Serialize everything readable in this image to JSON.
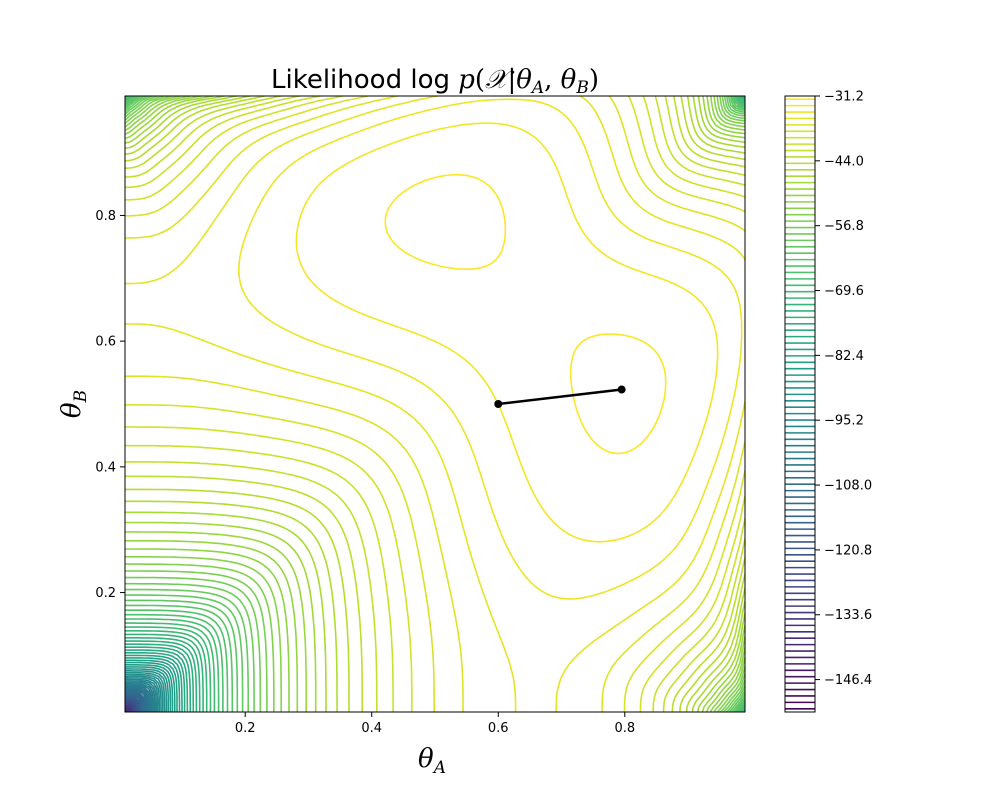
{
  "chart_data": {
    "type": "contour",
    "title": "Likelihood log p(𝒳|θ_A, θ_B)",
    "title_parts": {
      "prefix": "Likelihood log ",
      "p": "p",
      "open": "(",
      "X": "𝒳",
      "bar": "|",
      "theta": "θ",
      "A": "A",
      "comma": ", ",
      "B": "B",
      "close": ")"
    },
    "xlabel": {
      "symbol": "θ",
      "sub": "A"
    },
    "ylabel": {
      "symbol": "θ",
      "sub": "B"
    },
    "xlim": [
      0.01,
      0.99
    ],
    "ylim": [
      0.01,
      0.99
    ],
    "x_ticks": [
      0.2,
      0.4,
      0.6,
      0.8
    ],
    "y_ticks": [
      0.2,
      0.4,
      0.6,
      0.8
    ],
    "x_tick_labels": [
      "0.2",
      "0.4",
      "0.6",
      "0.8"
    ],
    "y_tick_labels": [
      "0.2",
      "0.4",
      "0.6",
      "0.8"
    ],
    "colormap": "viridis",
    "colorbar": {
      "min": -152.8,
      "max": -31.2,
      "ticks": [
        -31.2,
        -44.0,
        -56.8,
        -69.6,
        -82.4,
        -95.2,
        -108.0,
        -120.8,
        -133.6,
        -146.4
      ],
      "tick_labels": [
        "−31.2",
        "−44.0",
        "−56.8",
        "−69.6",
        "−82.4",
        "−95.2",
        "−108.0",
        "−120.8",
        "−133.6",
        "−146.4"
      ]
    },
    "path": {
      "color": "#000000",
      "points": [
        [
          0.6,
          0.5
        ],
        [
          0.795,
          0.523
        ]
      ]
    },
    "local_maxima": [
      [
        0.45,
        0.78
      ],
      [
        0.76,
        0.53
      ]
    ]
  }
}
